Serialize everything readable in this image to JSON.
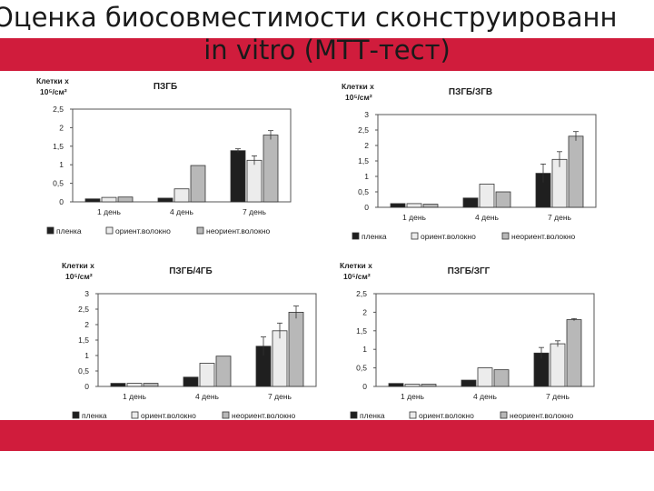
{
  "slide": {
    "title_line1": "Оценка биосовместимости сконструированн",
    "title_line2": "in vitro (МТТ-тест)"
  },
  "colors": {
    "band": "#d01c3c",
    "s1": "#1f1f1f",
    "s2": "#ececec",
    "s3": "#b8b8b8"
  },
  "chart_data": [
    {
      "type": "bar",
      "title": "ПЗГБ",
      "ylabel_line1": "Клетки х",
      "ylabel_line2": "10⁵/см²",
      "categories": [
        "1 день",
        "4 день",
        "7 день"
      ],
      "yticks": [
        "0",
        "0,5",
        "1",
        "1,5",
        "2",
        "2,5"
      ],
      "ylim": [
        0,
        2.5
      ],
      "series": [
        {
          "name": "пленка",
          "values": [
            0.08,
            0.1,
            1.38
          ]
        },
        {
          "name": "ориент.волокно",
          "values": [
            0.12,
            0.35,
            1.12
          ]
        },
        {
          "name": "неориент.волокно",
          "values": [
            0.13,
            0.98,
            1.8
          ]
        }
      ],
      "errors": [
        [
          0,
          0,
          0.05
        ],
        [
          0,
          0,
          0.12
        ],
        [
          0,
          0,
          0.12
        ]
      ]
    },
    {
      "type": "bar",
      "title": "ПЗГБ/ЗГВ",
      "ylabel_line1": "Клетки х",
      "ylabel_line2": "10⁵/см²",
      "categories": [
        "1 день",
        "4 день",
        "7 день"
      ],
      "yticks": [
        "0",
        "0,5",
        "1",
        "1,5",
        "2",
        "2,5",
        "3"
      ],
      "ylim": [
        0,
        3
      ],
      "series": [
        {
          "name": "пленка",
          "values": [
            0.12,
            0.3,
            1.1
          ]
        },
        {
          "name": "ориент.волокно",
          "values": [
            0.12,
            0.75,
            1.55
          ]
        },
        {
          "name": "неориент.волокно",
          "values": [
            0.1,
            0.5,
            2.3
          ]
        }
      ],
      "errors": [
        [
          0,
          0,
          0.3
        ],
        [
          0,
          0,
          0.25
        ],
        [
          0,
          0,
          0.15
        ]
      ]
    },
    {
      "type": "bar",
      "title": "ПЗГБ/4ГБ",
      "ylabel_line1": "Клетки х",
      "ylabel_line2": "10⁵/см²",
      "categories": [
        "1 день",
        "4 день",
        "7 день"
      ],
      "yticks": [
        "0",
        "0,5",
        "1",
        "1,5",
        "2",
        "2,5",
        "3"
      ],
      "ylim": [
        0,
        3
      ],
      "series": [
        {
          "name": "пленка",
          "values": [
            0.1,
            0.3,
            1.3
          ]
        },
        {
          "name": "ориент.волокно",
          "values": [
            0.1,
            0.75,
            1.8
          ]
        },
        {
          "name": "неориент.волокно",
          "values": [
            0.1,
            0.98,
            2.4
          ]
        }
      ],
      "errors": [
        [
          0,
          0,
          0.3
        ],
        [
          0,
          0,
          0.25
        ],
        [
          0,
          0,
          0.2
        ]
      ]
    },
    {
      "type": "bar",
      "title": "ПЗГБ/ЗГГ",
      "ylabel_line1": "Клетки х",
      "ylabel_line2": "10⁵/см²",
      "categories": [
        "1 день",
        "4 день",
        "7 день"
      ],
      "yticks": [
        "0",
        "0,5",
        "1",
        "1,5",
        "2",
        "2,5"
      ],
      "ylim": [
        0,
        2.5
      ],
      "series": [
        {
          "name": "пленка",
          "values": [
            0.08,
            0.17,
            0.9
          ]
        },
        {
          "name": "ориент.волокно",
          "values": [
            0.06,
            0.5,
            1.15
          ]
        },
        {
          "name": "неориент.волокно",
          "values": [
            0.06,
            0.45,
            1.8
          ]
        }
      ],
      "errors": [
        [
          0,
          0,
          0.15
        ],
        [
          0,
          0,
          0.08
        ],
        [
          0,
          0,
          0.03
        ]
      ]
    }
  ]
}
